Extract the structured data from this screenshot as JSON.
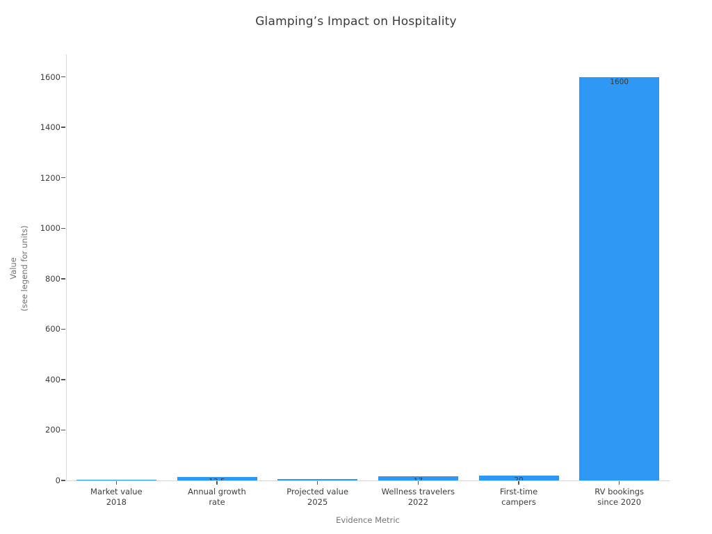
{
  "title": "Glamping’s Impact on Hospitality",
  "colors": {
    "bar": "#2f97f4",
    "title_text": "#3a3a3a",
    "tick_text": "#3d3d3d",
    "axis_label_text": "#757575",
    "spine": "#d8d8d8",
    "bar_value_label": "#3a3a3a",
    "background": "#ffffff"
  },
  "chart_data": {
    "type": "bar",
    "title": "Glamping’s Impact on Hospitality",
    "xlabel": "Evidence Metric",
    "ylabel": "Value\n(see legend for units)",
    "categories": [
      "Market value\n2018",
      "Annual growth\nrate",
      "Projected value\n2025",
      "Wellness travelers\n2022",
      "First-time\ncampers",
      "RV bookings\nsince 2020"
    ],
    "values": [
      2.1,
      12.5,
      4.8,
      17,
      20,
      1600
    ],
    "bar_value_labels": [
      "2.1",
      "12.5",
      "4.8",
      "17",
      "20",
      "1600"
    ],
    "yticks": [
      0,
      200,
      400,
      600,
      800,
      1000,
      1200,
      1400,
      1600
    ],
    "ylim": [
      0,
      1690
    ],
    "grid": false,
    "legend": "none",
    "bar_color": "#2f97f4"
  }
}
